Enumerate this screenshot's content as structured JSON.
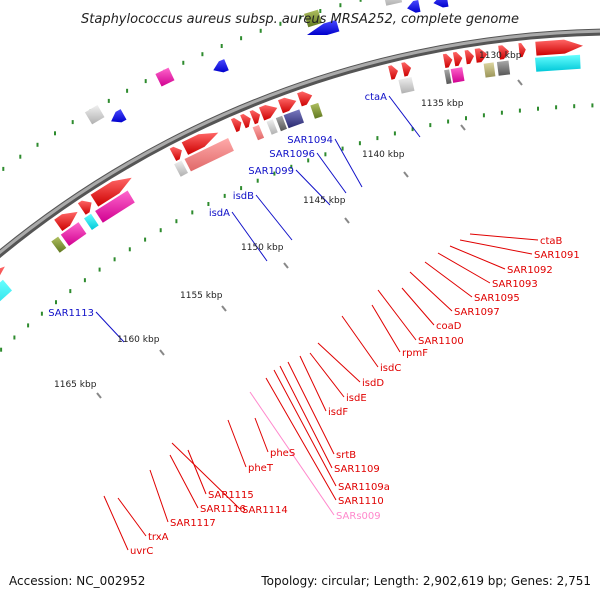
{
  "title": "Staphylococcus aureus subsp. aureus MRSA252, complete genome",
  "footer": {
    "accession": "Accession: NC_002952",
    "topology": "Topology: circular; Length: 2,902,619 bp; Genes: 2,751"
  },
  "colors": {
    "backbone": "#8c8c8c",
    "tick": "#2e8b2e",
    "forward_label": "#1010c8",
    "reverse_label": "#e00000",
    "rna_label": "#ff88cc"
  },
  "scale_labels": [
    "1130 kbp",
    "1135 kbp",
    "1140 kbp",
    "1145 kbp",
    "1150 kbp",
    "1155 kbp",
    "1160 kbp",
    "1165 kbp"
  ],
  "forward_labels": [
    "ctaA",
    "SAR1094",
    "SAR1096",
    "SAR1099",
    "isdB",
    "isdA",
    "SAR1113"
  ],
  "reverse_labels": [
    "ctaB",
    "SAR1091",
    "SAR1092",
    "SAR1093",
    "SAR1095",
    "SAR1097",
    "coaD",
    "SAR1100",
    "rpmF",
    "isdC",
    "isdD",
    "isdE",
    "isdF",
    "srtB",
    "SAR1109",
    "SAR1109a",
    "SAR1110",
    "pheS",
    "pheT",
    "SAR1115",
    "SAR1116",
    "SAR1114",
    "SAR1117",
    "trxA",
    "uvrC"
  ],
  "rna_labels": [
    "SARs009"
  ]
}
